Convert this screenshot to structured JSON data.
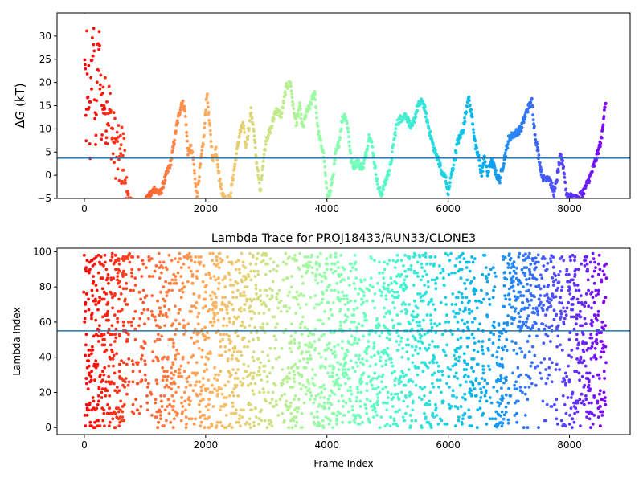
{
  "chart_data": [
    {
      "type": "scatter",
      "title": "",
      "xlabel": "",
      "ylabel": "ΔG (kT)",
      "xlim": [
        -450,
        9000
      ],
      "ylim": [
        -5,
        35
      ],
      "xticks": [
        0,
        2000,
        4000,
        6000,
        8000
      ],
      "yticks": [
        -5,
        0,
        5,
        10,
        15,
        20,
        25,
        30
      ],
      "colormap": "rainbow_r (frame index)",
      "hline": 3.7,
      "hline_color": "#1f77b4",
      "series_anchors": [
        [
          0,
          33
        ],
        [
          10,
          24
        ],
        [
          20,
          14
        ],
        [
          30,
          5
        ],
        [
          40,
          28
        ],
        [
          55,
          11
        ],
        [
          75,
          21
        ],
        [
          95,
          7
        ],
        [
          120,
          24
        ],
        [
          150,
          30
        ],
        [
          180,
          9
        ],
        [
          210,
          20
        ],
        [
          240,
          28
        ],
        [
          280,
          13
        ],
        [
          320,
          17
        ],
        [
          360,
          13
        ],
        [
          410,
          15
        ],
        [
          460,
          8
        ],
        [
          520,
          6
        ],
        [
          580,
          3
        ],
        [
          640,
          5
        ],
        [
          700,
          -4
        ],
        [
          800,
          -6
        ],
        [
          950,
          -6
        ],
        [
          1050,
          -5
        ],
        [
          1150,
          -3
        ],
        [
          1250,
          -4
        ],
        [
          1350,
          0
        ],
        [
          1430,
          3
        ],
        [
          1500,
          9
        ],
        [
          1560,
          13
        ],
        [
          1610,
          16
        ],
        [
          1660,
          14
        ],
        [
          1710,
          5
        ],
        [
          1760,
          6
        ],
        [
          1800,
          3
        ],
        [
          1850,
          -5
        ],
        [
          1920,
          3
        ],
        [
          1970,
          8
        ],
        [
          2020,
          18
        ],
        [
          2070,
          10
        ],
        [
          2120,
          3
        ],
        [
          2170,
          6
        ],
        [
          2230,
          -1
        ],
        [
          2300,
          -5
        ],
        [
          2400,
          -5
        ],
        [
          2490,
          3
        ],
        [
          2560,
          9
        ],
        [
          2620,
          11
        ],
        [
          2660,
          6
        ],
        [
          2700,
          9
        ],
        [
          2750,
          14
        ],
        [
          2790,
          10
        ],
        [
          2830,
          4
        ],
        [
          2870,
          0
        ],
        [
          2900,
          -4
        ],
        [
          2930,
          1
        ],
        [
          3000,
          8
        ],
        [
          3080,
          10
        ],
        [
          3150,
          14
        ],
        [
          3250,
          13
        ],
        [
          3330,
          19
        ],
        [
          3400,
          20
        ],
        [
          3450,
          14
        ],
        [
          3500,
          11
        ],
        [
          3550,
          15
        ],
        [
          3600,
          10
        ],
        [
          3650,
          13
        ],
        [
          3720,
          15
        ],
        [
          3800,
          18
        ],
        [
          3850,
          10
        ],
        [
          3900,
          7
        ],
        [
          3950,
          4
        ],
        [
          4000,
          -4
        ],
        [
          4050,
          -4
        ],
        [
          4100,
          0
        ],
        [
          4150,
          5
        ],
        [
          4200,
          7
        ],
        [
          4250,
          12
        ],
        [
          4300,
          13
        ],
        [
          4350,
          10
        ],
        [
          4400,
          3
        ],
        [
          4450,
          2
        ],
        [
          4500,
          3
        ],
        [
          4550,
          2
        ],
        [
          4600,
          2
        ],
        [
          4650,
          5
        ],
        [
          4700,
          9
        ],
        [
          4750,
          6
        ],
        [
          4800,
          1
        ],
        [
          4850,
          -3
        ],
        [
          4900,
          -4
        ],
        [
          4950,
          -2
        ],
        [
          5000,
          0
        ],
        [
          5050,
          2
        ],
        [
          5100,
          7
        ],
        [
          5150,
          11
        ],
        [
          5200,
          12
        ],
        [
          5300,
          13
        ],
        [
          5400,
          10
        ],
        [
          5500,
          15
        ],
        [
          5580,
          16
        ],
        [
          5650,
          12
        ],
        [
          5700,
          9
        ],
        [
          5780,
          5
        ],
        [
          5850,
          3
        ],
        [
          5900,
          0
        ],
        [
          5950,
          0
        ],
        [
          6000,
          -4
        ],
        [
          6050,
          0
        ],
        [
          6100,
          3
        ],
        [
          6150,
          7
        ],
        [
          6250,
          10
        ],
        [
          6330,
          17
        ],
        [
          6400,
          12
        ],
        [
          6450,
          6
        ],
        [
          6500,
          4
        ],
        [
          6550,
          0
        ],
        [
          6600,
          4
        ],
        [
          6650,
          0
        ],
        [
          6700,
          3
        ],
        [
          6750,
          2
        ],
        [
          6800,
          0
        ],
        [
          6850,
          -1
        ],
        [
          6900,
          2
        ],
        [
          6950,
          5
        ],
        [
          7000,
          8
        ],
        [
          7100,
          9
        ],
        [
          7200,
          10
        ],
        [
          7300,
          14
        ],
        [
          7380,
          16
        ],
        [
          7430,
          9
        ],
        [
          7480,
          5
        ],
        [
          7530,
          1
        ],
        [
          7580,
          -1
        ],
        [
          7650,
          0
        ],
        [
          7750,
          -4
        ],
        [
          7800,
          0
        ],
        [
          7850,
          4
        ],
        [
          7900,
          2
        ],
        [
          7950,
          -4
        ],
        [
          8050,
          -5
        ],
        [
          8150,
          -5
        ],
        [
          8250,
          -3
        ],
        [
          8350,
          0
        ],
        [
          8450,
          4
        ],
        [
          8530,
          8
        ],
        [
          8580,
          15
        ]
      ]
    },
    {
      "type": "scatter",
      "title": "Lambda Trace for PROJ18433/RUN33/CLONE3",
      "xlabel": "Frame Index",
      "ylabel": "Lambda Index",
      "xlim": [
        -450,
        9000
      ],
      "ylim": [
        -4,
        102
      ],
      "xticks": [
        0,
        2000,
        4000,
        6000,
        8000
      ],
      "yticks": [
        0,
        20,
        40,
        60,
        80,
        100
      ],
      "xticklabels": [
        "0",
        "2000",
        "4000",
        "6000",
        "8000"
      ],
      "colormap": "rainbow_r (frame index)",
      "hline": 55,
      "hline_color": "#1f77b4",
      "x_range": [
        0,
        8600
      ],
      "lambda_range": [
        0,
        99
      ]
    }
  ],
  "panel1_yticklabels": [
    "−5",
    "0",
    "5",
    "10",
    "15",
    "20",
    "25",
    "30"
  ],
  "panel1_xticklabels": [
    "0",
    "2000",
    "4000",
    "6000",
    "8000"
  ],
  "panel2_yticklabels": [
    "0",
    "20",
    "40",
    "60",
    "80",
    "100"
  ]
}
